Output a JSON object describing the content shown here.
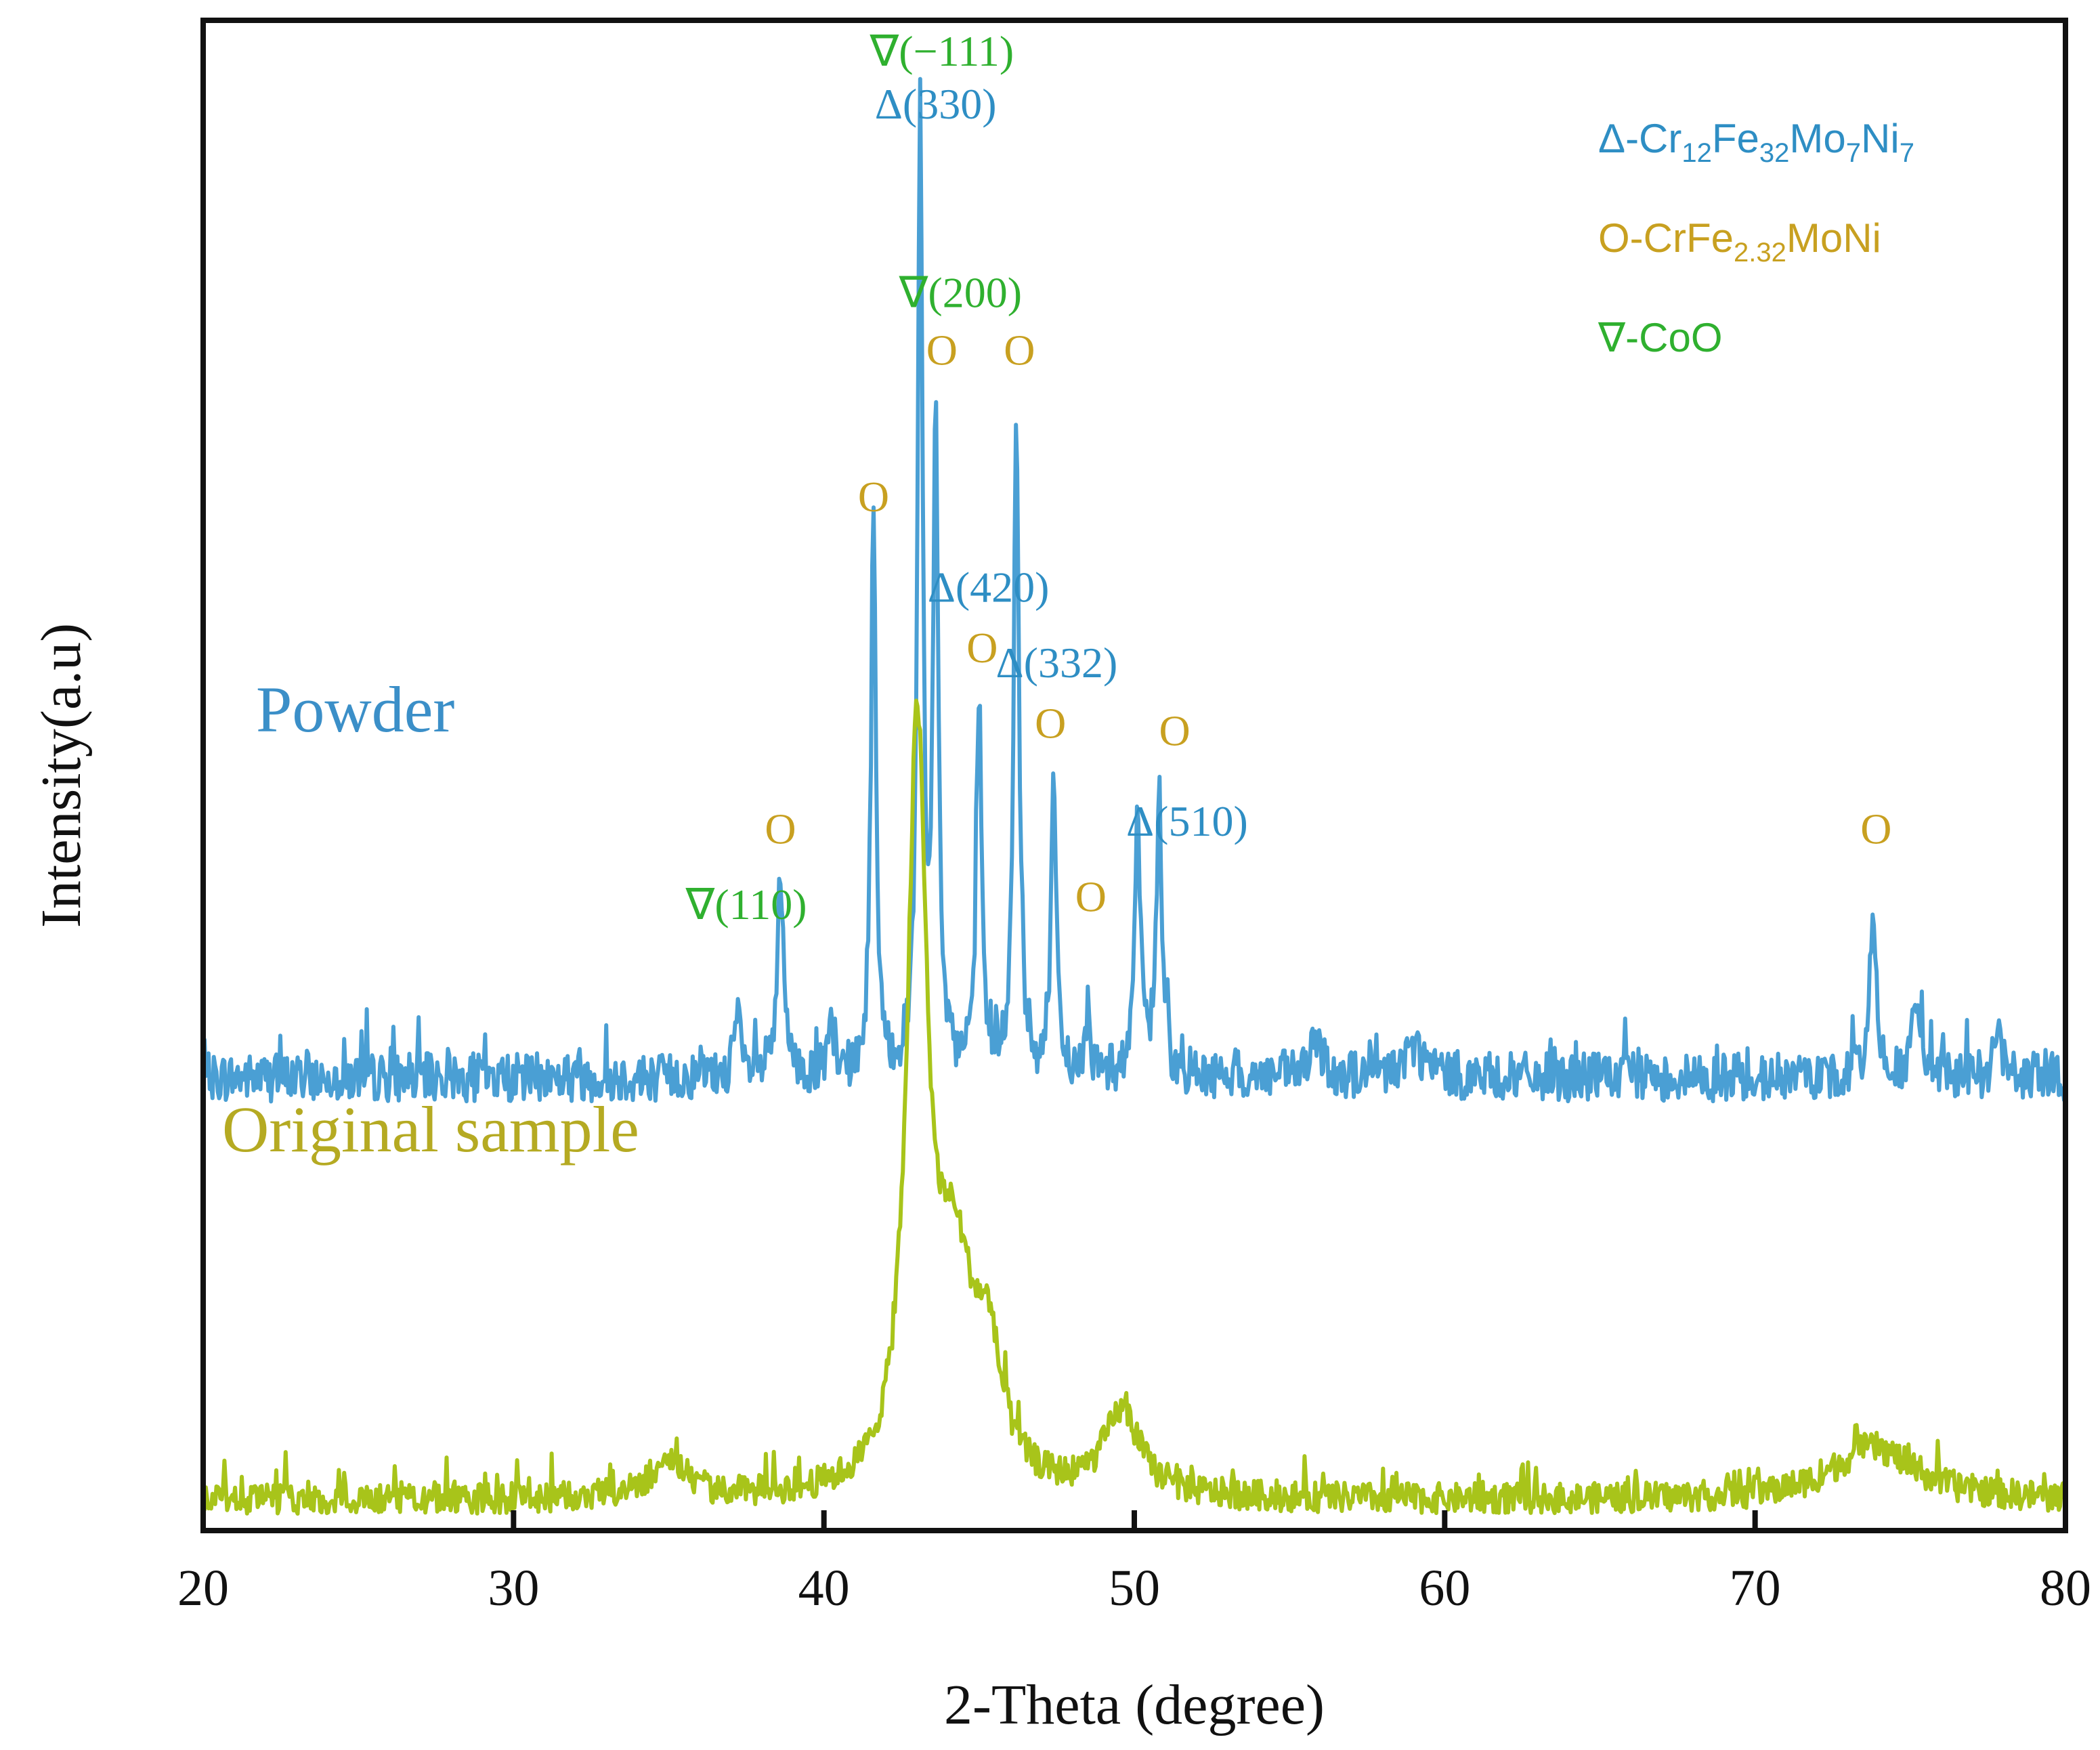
{
  "chart_data": {
    "type": "line",
    "title": "",
    "xlabel": "2-Theta (degree)",
    "ylabel": "Intensity(a.u)",
    "xlim": [
      20,
      80
    ],
    "ylim": [
      0,
      100
    ],
    "xticks": [
      "20",
      "30",
      "40",
      "50",
      "60",
      "70",
      "80"
    ],
    "yticks_shown": false,
    "colors": {
      "powder": "#4a9fd4",
      "original": "#a8c41a",
      "delta": "#2e8ec4",
      "circle": "#c8a020",
      "nabla": "#2fb02f"
    },
    "series": [
      {
        "name": "Powder",
        "label": "Powder",
        "baseline": 30,
        "noise": 1.6,
        "peaks": [
          {
            "x": 37.2,
            "y": 4,
            "w": 0.12
          },
          {
            "x": 38.6,
            "y": 13,
            "w": 0.12
          },
          {
            "x": 40.2,
            "y": 3,
            "w": 0.1
          },
          {
            "x": 41.6,
            "y": 36,
            "w": 0.1
          },
          {
            "x": 43.1,
            "y": 63,
            "w": 0.1
          },
          {
            "x": 43.6,
            "y": 43,
            "w": 0.1
          },
          {
            "x": 45.0,
            "y": 25,
            "w": 0.1
          },
          {
            "x": 46.2,
            "y": 44,
            "w": 0.1
          },
          {
            "x": 47.4,
            "y": 19,
            "w": 0.1
          },
          {
            "x": 48.5,
            "y": 4,
            "w": 0.1
          },
          {
            "x": 50.1,
            "y": 16,
            "w": 0.12
          },
          {
            "x": 50.8,
            "y": 17,
            "w": 0.12
          },
          {
            "x": 55.9,
            "y": 2,
            "w": 0.3
          },
          {
            "x": 59.0,
            "y": 2,
            "w": 0.4
          },
          {
            "x": 73.8,
            "y": 12,
            "w": 0.12
          },
          {
            "x": 75.2,
            "y": 5,
            "w": 0.15
          },
          {
            "x": 77.8,
            "y": 3,
            "w": 0.15
          }
        ]
      },
      {
        "name": "Original sample",
        "label": "Original sample",
        "baseline": 2,
        "noise": 1.0,
        "peaks": [
          {
            "x": 35.0,
            "y": 2.5,
            "w": 0.7
          },
          {
            "x": 43.0,
            "y": 48,
            "w": 0.38
          },
          {
            "x": 44.2,
            "y": 14,
            "w": 0.8
          },
          {
            "x": 45.3,
            "y": 7,
            "w": 0.5
          },
          {
            "x": 49.6,
            "y": 5.5,
            "w": 0.7
          },
          {
            "x": 73.8,
            "y": 3.5,
            "w": 1.6
          }
        ]
      }
    ],
    "annotations": [
      {
        "text": "∇(−111)",
        "x": 43.8,
        "y": 97,
        "kind": "nabla"
      },
      {
        "text": "Δ(330)",
        "x": 43.6,
        "y": 93.5,
        "kind": "delta"
      },
      {
        "text": "∇(200)",
        "x": 44.4,
        "y": 81,
        "kind": "nabla"
      },
      {
        "text": "O",
        "x": 43.8,
        "y": 77.2,
        "kind": "circle"
      },
      {
        "text": "O",
        "x": 46.3,
        "y": 77.2,
        "kind": "circle"
      },
      {
        "text": "O",
        "x": 41.6,
        "y": 67.5,
        "kind": "circle"
      },
      {
        "text": "Δ(420)",
        "x": 45.3,
        "y": 61.5,
        "kind": "delta"
      },
      {
        "text": "O",
        "x": 45.1,
        "y": 57.5,
        "kind": "circle"
      },
      {
        "text": "Δ(332)",
        "x": 47.5,
        "y": 56.5,
        "kind": "delta"
      },
      {
        "text": "O",
        "x": 47.3,
        "y": 52.5,
        "kind": "circle"
      },
      {
        "text": "O",
        "x": 51.3,
        "y": 52,
        "kind": "circle"
      },
      {
        "text": "Δ(510)",
        "x": 51.7,
        "y": 46,
        "kind": "delta"
      },
      {
        "text": "O",
        "x": 38.6,
        "y": 45.5,
        "kind": "circle"
      },
      {
        "text": "∇(110)",
        "x": 37.5,
        "y": 40.5,
        "kind": "nabla"
      },
      {
        "text": "O",
        "x": 48.6,
        "y": 41,
        "kind": "circle"
      },
      {
        "text": "O",
        "x": 73.9,
        "y": 45.5,
        "kind": "circle"
      }
    ],
    "legend": {
      "placement": "top-right",
      "entries": [
        {
          "kind": "delta",
          "parts": [
            [
              "Δ-Cr",
              ""
            ],
            [
              "12",
              "sub"
            ],
            [
              "Fe",
              ""
            ],
            [
              "32",
              "sub"
            ],
            [
              "Mo",
              ""
            ],
            [
              "7",
              "sub"
            ],
            [
              "Ni",
              ""
            ],
            [
              "7",
              "sub"
            ]
          ]
        },
        {
          "kind": "circle",
          "parts": [
            [
              "O-CrFe",
              ""
            ],
            [
              "2.32",
              "sub"
            ],
            [
              "MoNi",
              ""
            ]
          ]
        },
        {
          "kind": "nabla",
          "parts": [
            [
              "∇-CoO",
              ""
            ]
          ]
        }
      ]
    }
  }
}
